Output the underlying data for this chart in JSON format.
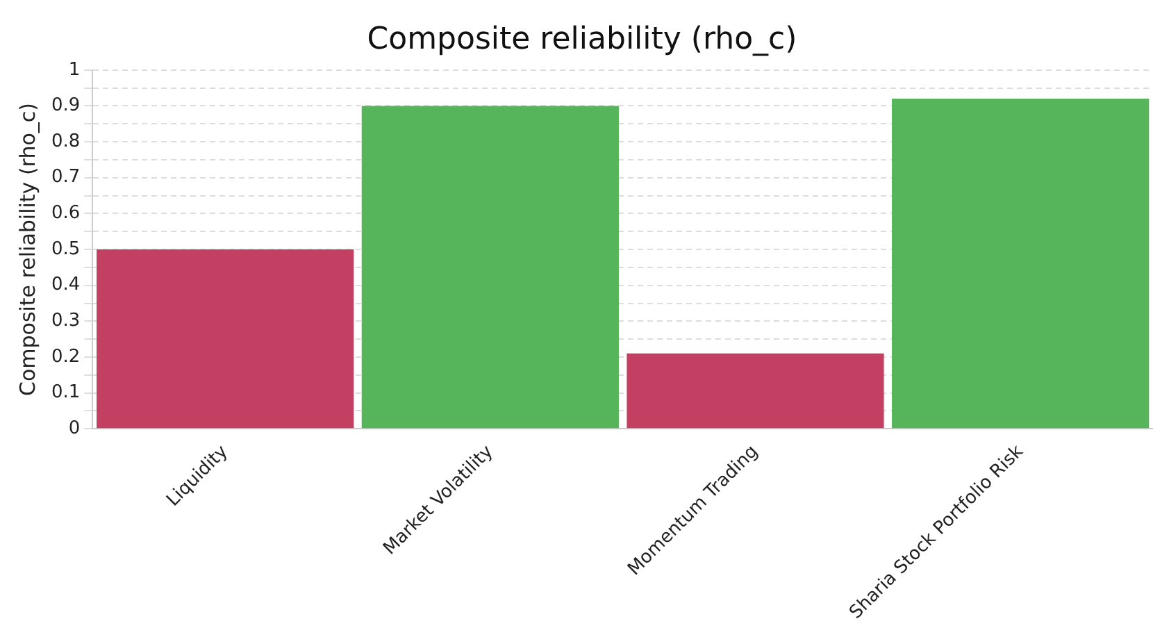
{
  "chart_data": {
    "type": "bar",
    "title": "Composite reliability (rho_c)",
    "ylabel": "Composite reliability (rho_c)",
    "categories": [
      "Liquidity",
      "Market Volatility",
      "Momentum Trading",
      "Sharia Stock Portfolio Risk"
    ],
    "values": [
      0.5,
      0.9,
      0.21,
      0.92
    ],
    "colors": [
      "#c44063",
      "#56b55a",
      "#c44063",
      "#56b55a"
    ],
    "ylim": [
      0,
      1
    ],
    "yticks": [
      0,
      {
        "value": 0.05,
        "label": null
      },
      0.1,
      {
        "value": 0.15,
        "label": null
      },
      0.2,
      {
        "value": 0.25,
        "label": null
      },
      0.3,
      {
        "value": 0.35,
        "label": null
      },
      0.4,
      {
        "value": 0.45,
        "label": null
      },
      0.5,
      {
        "value": 0.55,
        "label": null
      },
      0.6,
      {
        "value": 0.65,
        "label": null
      },
      0.7,
      {
        "value": 0.75,
        "label": null
      },
      0.8,
      {
        "value": 0.85,
        "label": null
      },
      0.9,
      {
        "value": 0.95,
        "label": null
      },
      1
    ],
    "grid": "y",
    "legend": false
  }
}
